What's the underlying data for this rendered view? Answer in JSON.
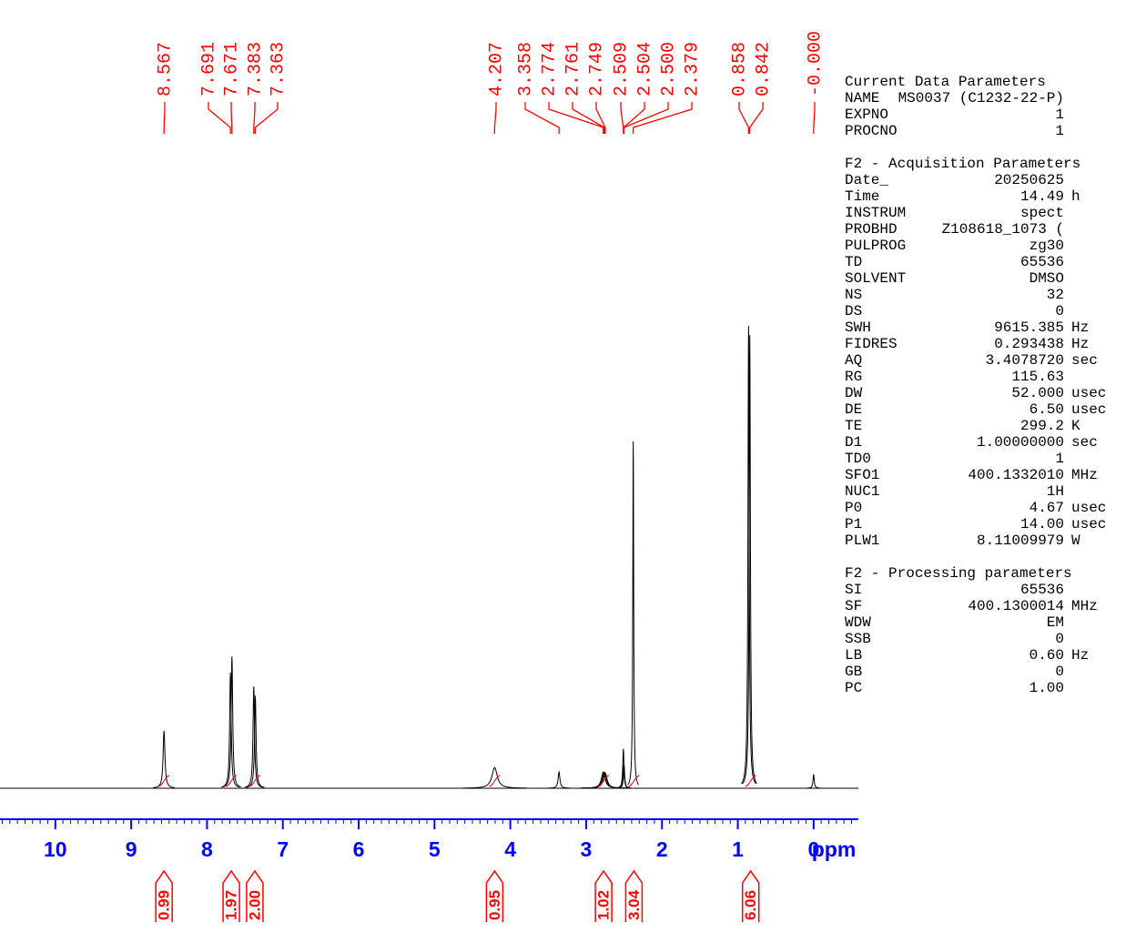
{
  "chart_data": {
    "type": "nmr",
    "x_label": "ppm",
    "xlim": [
      10.73,
      -0.59
    ],
    "xticks": [
      10,
      9,
      8,
      7,
      6,
      5,
      4,
      3,
      2,
      1,
      0
    ],
    "minor_ticks": 0.1,
    "color": "#000000",
    "label_color": "#ff0000",
    "axis_color": "#0000ff",
    "peaks": {
      "x": [
        8.567,
        7.691,
        7.671,
        7.383,
        7.363,
        4.207,
        3.358,
        2.774,
        2.761,
        2.749,
        2.509,
        2.504,
        {
          "value": 2.5,
          "label": "2.500"
        },
        2.379,
        0.858,
        0.842,
        {
          "value": 0,
          "label": "-0.000"
        }
      ],
      "values": [
        12.4,
        25,
        28.5,
        22,
        20,
        4.5,
        3.5,
        3.5,
        3.5,
        3.3,
        8.5,
        5,
        5,
        75,
        100,
        98,
        3
      ]
    },
    "integrals": {
      "x": [
        8.567,
        7.68,
        7.37,
        4.207,
        2.77,
        2.37,
        0.83
      ],
      "values": [
        0.99,
        1.97,
        {
          "value": 2,
          "label": "2.00"
        },
        0.95,
        1.02,
        3.04,
        6.06
      ]
    }
  },
  "parameters": {
    "sections": [
      {
        "title": "Current Data Parameters",
        "rows": [
          [
            "NAME",
            "MS0037 (C1232-22-P)"
          ],
          [
            "EXPNO",
            "1"
          ],
          [
            "PROCNO",
            "1"
          ]
        ]
      },
      {
        "title": "F2 - Acquisition Parameters",
        "rows": [
          [
            "Date_",
            "20250625"
          ],
          [
            "Time",
            "14.49",
            "h"
          ],
          [
            "INSTRUM",
            "spect"
          ],
          [
            "PROBHD",
            "Z108618_1073 ("
          ],
          [
            "PULPROG",
            "zg30"
          ],
          [
            "TD",
            "65536"
          ],
          [
            "SOLVENT",
            "DMSO"
          ],
          [
            "NS",
            "32"
          ],
          [
            "DS",
            "0"
          ],
          [
            "SWH",
            "9615.385",
            "Hz"
          ],
          [
            "FIDRES",
            "0.293438",
            "Hz"
          ],
          [
            "AQ",
            "3.4078720",
            "sec"
          ],
          [
            "RG",
            "115.63"
          ],
          [
            "DW",
            "52.000",
            "usec"
          ],
          [
            "DE",
            "6.50",
            "usec"
          ],
          [
            "TE",
            "299.2",
            "K"
          ],
          [
            "D1",
            "1.00000000",
            "sec"
          ],
          [
            "TD0",
            "1"
          ],
          [
            "SFO1",
            "400.1332010",
            "MHz"
          ],
          [
            "NUC1",
            "1H"
          ],
          [
            "P0",
            "4.67",
            "usec"
          ],
          [
            "P1",
            "14.00",
            "usec"
          ],
          [
            "PLW1",
            "8.11009979",
            "W"
          ]
        ]
      },
      {
        "title": "F2 - Processing parameters",
        "rows": [
          [
            "SI",
            "65536"
          ],
          [
            "SF",
            "400.1300014",
            "MHz"
          ],
          [
            "WDW",
            "EM"
          ],
          [
            "SSB",
            "0"
          ],
          [
            "LB",
            "0.60",
            "Hz"
          ],
          [
            "GB",
            "0"
          ],
          [
            "PC",
            "1.00"
          ]
        ]
      }
    ]
  }
}
